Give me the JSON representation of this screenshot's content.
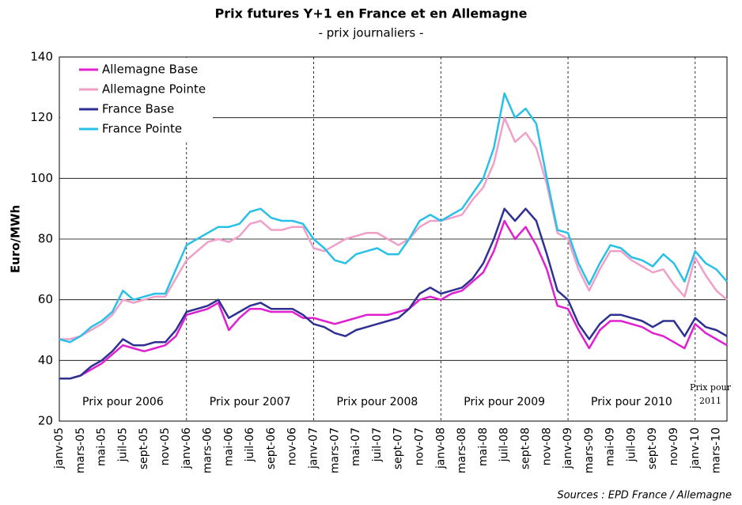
{
  "chart_data": {
    "type": "line",
    "title": "Prix futures Y+1 en France et en Allemagne",
    "subtitle": "- prix journaliers -",
    "y_label": "Euro/MWh",
    "source": "Sources : EPD France / Allemagne",
    "annotations": [
      "Prix pour 2006",
      "Prix pour 2007",
      "Prix pour 2008",
      "Prix pour 2009",
      "Prix pour 2010"
    ],
    "annotation_2011": [
      "Prix pour",
      "2011"
    ],
    "categories": [
      "janv-05",
      null,
      "mars-05",
      null,
      "mai-05",
      null,
      "juil-05",
      null,
      "sept-05",
      null,
      "nov-05",
      null,
      "janv-06",
      null,
      "mars-06",
      null,
      "mai-06",
      null,
      "juil-06",
      null,
      "sept-06",
      null,
      "nov-06",
      null,
      "janv-07",
      null,
      "mars-07",
      null,
      "mai-07",
      null,
      "juil-07",
      null,
      "sept-07",
      null,
      "nov-07",
      null,
      "janv-08",
      null,
      "mars-08",
      null,
      "mai-08",
      null,
      "juil-08",
      null,
      "sept-08",
      null,
      "nov-08",
      null,
      "janv-09",
      null,
      "mars-09",
      null,
      "mai-09",
      null,
      "juil-09",
      null,
      "sept-09",
      null,
      "nov-09",
      null,
      "janv-10",
      null,
      "mars-10",
      null
    ],
    "series": [
      {
        "name": "Allemagne Base",
        "color": "#e020d0",
        "values": [
          34,
          34,
          35,
          37,
          39,
          42,
          45,
          44,
          43,
          44,
          45,
          48,
          55,
          56,
          57,
          59,
          50,
          54,
          57,
          57,
          56,
          56,
          56,
          54,
          54,
          53,
          52,
          53,
          54,
          55,
          55,
          55,
          56,
          57,
          60,
          61,
          60,
          62,
          63,
          66,
          69,
          76,
          86,
          80,
          84,
          78,
          70,
          58,
          57,
          50,
          44,
          50,
          53,
          53,
          52,
          51,
          49,
          48,
          46,
          44,
          52,
          49,
          47,
          45
        ]
      },
      {
        "name": "Allemagne Pointe",
        "color": "#f0a0c8",
        "values": [
          47,
          47,
          48,
          50,
          52,
          55,
          60,
          59,
          60,
          61,
          61,
          67,
          73,
          76,
          79,
          80,
          79,
          81,
          85,
          86,
          83,
          83,
          84,
          84,
          77,
          76,
          78,
          80,
          81,
          82,
          82,
          80,
          78,
          80,
          84,
          86,
          86,
          87,
          88,
          93,
          97,
          105,
          120,
          112,
          115,
          110,
          98,
          82,
          80,
          70,
          63,
          70,
          76,
          76,
          73,
          71,
          69,
          70,
          65,
          61,
          74,
          68,
          63,
          60
        ]
      },
      {
        "name": "France Base",
        "color": "#2e3192",
        "values": [
          34,
          34,
          35,
          38,
          40,
          43,
          47,
          45,
          45,
          46,
          46,
          50,
          56,
          57,
          58,
          60,
          54,
          56,
          58,
          59,
          57,
          57,
          57,
          55,
          52,
          51,
          49,
          48,
          50,
          51,
          52,
          53,
          54,
          57,
          62,
          64,
          62,
          63,
          64,
          67,
          72,
          80,
          90,
          86,
          90,
          86,
          75,
          63,
          60,
          52,
          47,
          52,
          55,
          55,
          54,
          53,
          51,
          53,
          53,
          48,
          54,
          51,
          50,
          48
        ]
      },
      {
        "name": "France Pointe",
        "color": "#29c0e8",
        "values": [
          47,
          46,
          48,
          51,
          53,
          56,
          63,
          60,
          61,
          62,
          62,
          70,
          78,
          80,
          82,
          84,
          84,
          85,
          89,
          90,
          87,
          86,
          86,
          85,
          80,
          77,
          73,
          72,
          75,
          76,
          77,
          75,
          75,
          80,
          86,
          88,
          86,
          88,
          90,
          95,
          100,
          110,
          128,
          120,
          123,
          118,
          100,
          83,
          82,
          72,
          65,
          72,
          78,
          77,
          74,
          73,
          71,
          75,
          72,
          66,
          76,
          72,
          70,
          66
        ]
      }
    ],
    "ylim": [
      20,
      140
    ],
    "yticks": [
      20,
      40,
      60,
      80,
      100,
      120,
      140
    ],
    "grid": true,
    "legend": "upper left"
  }
}
